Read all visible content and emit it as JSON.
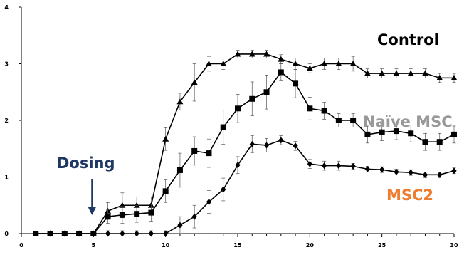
{
  "chart_data": {
    "type": "line",
    "title": "",
    "xlabel": "",
    "ylabel": "",
    "xlim": [
      0,
      30
    ],
    "ylim": [
      0,
      4
    ],
    "xticks": [
      0,
      5,
      10,
      15,
      20,
      25,
      30
    ],
    "yticks": [
      0,
      1,
      2,
      3,
      4
    ],
    "grid": false,
    "legend": "none",
    "series": [
      {
        "name": "Control",
        "marker": "triangle",
        "label_color": "#000000",
        "x": [
          1,
          2,
          3,
          4,
          5,
          6,
          7,
          8,
          9,
          10,
          11,
          12,
          13,
          14,
          15,
          16,
          17,
          18,
          19,
          20,
          21,
          22,
          23,
          24,
          25,
          26,
          27,
          28,
          29,
          30
        ],
        "y": [
          0,
          0,
          0,
          0,
          0,
          0.4,
          0.5,
          0.5,
          0.5,
          1.67,
          2.33,
          2.67,
          3.0,
          3.0,
          3.17,
          3.17,
          3.17,
          3.08,
          3.0,
          2.92,
          3.0,
          3.0,
          3.0,
          2.83,
          2.83,
          2.83,
          2.83,
          2.83,
          2.75,
          2.75
        ],
        "err": [
          0,
          0,
          0,
          0,
          0,
          0.15,
          0.22,
          0.15,
          0.15,
          0.2,
          0.15,
          0.33,
          0.13,
          0.1,
          0.07,
          0.07,
          0.07,
          0.08,
          0.1,
          0.08,
          0.1,
          0.1,
          0.13,
          0.08,
          0.08,
          0.08,
          0.08,
          0.08,
          0.08,
          0.08
        ]
      },
      {
        "name": "Naïve MSC",
        "marker": "square",
        "label_color": "#999999",
        "x": [
          1,
          2,
          3,
          4,
          5,
          6,
          7,
          8,
          9,
          10,
          11,
          12,
          13,
          14,
          15,
          16,
          17,
          18,
          19,
          20,
          21,
          22,
          23,
          24,
          25,
          26,
          27,
          28,
          29,
          30
        ],
        "y": [
          0,
          0,
          0,
          0,
          0,
          0.3,
          0.33,
          0.35,
          0.37,
          0.75,
          1.12,
          1.46,
          1.42,
          1.88,
          2.21,
          2.38,
          2.5,
          2.85,
          2.65,
          2.21,
          2.17,
          2.0,
          2.0,
          1.75,
          1.79,
          1.81,
          1.77,
          1.62,
          1.62,
          1.75
        ],
        "err": [
          0,
          0,
          0,
          0,
          0,
          0.12,
          0.15,
          0.15,
          0.15,
          0.2,
          0.3,
          0.25,
          0.25,
          0.3,
          0.25,
          0.3,
          0.3,
          0.15,
          0.25,
          0.2,
          0.15,
          0.12,
          0.12,
          0.15,
          0.15,
          0.15,
          0.15,
          0.15,
          0.15,
          0.15
        ]
      },
      {
        "name": "MSC2",
        "marker": "diamond",
        "label_color": "#ed7d31",
        "x": [
          1,
          2,
          3,
          4,
          5,
          6,
          7,
          8,
          9,
          10,
          11,
          12,
          13,
          14,
          15,
          16,
          17,
          18,
          19,
          20,
          21,
          22,
          23,
          24,
          25,
          26,
          27,
          28,
          29,
          30
        ],
        "y": [
          0,
          0,
          0,
          0,
          0,
          0,
          0,
          0,
          0,
          0,
          0.15,
          0.3,
          0.56,
          0.78,
          1.21,
          1.58,
          1.56,
          1.65,
          1.55,
          1.23,
          1.2,
          1.2,
          1.19,
          1.14,
          1.13,
          1.09,
          1.08,
          1.04,
          1.04,
          1.11
        ],
        "err": [
          0,
          0,
          0,
          0,
          0,
          0.05,
          0.05,
          0.05,
          0.05,
          0.05,
          0.15,
          0.2,
          0.2,
          0.2,
          0.15,
          0.15,
          0.12,
          0.08,
          0.08,
          0.08,
          0.08,
          0.08,
          0.05,
          0.05,
          0.05,
          0.05,
          0.05,
          0.05,
          0.05,
          0.05
        ]
      }
    ],
    "annotations": [
      {
        "text": "Dosing",
        "color": "#1f3864",
        "arrow_x": 5
      }
    ]
  }
}
